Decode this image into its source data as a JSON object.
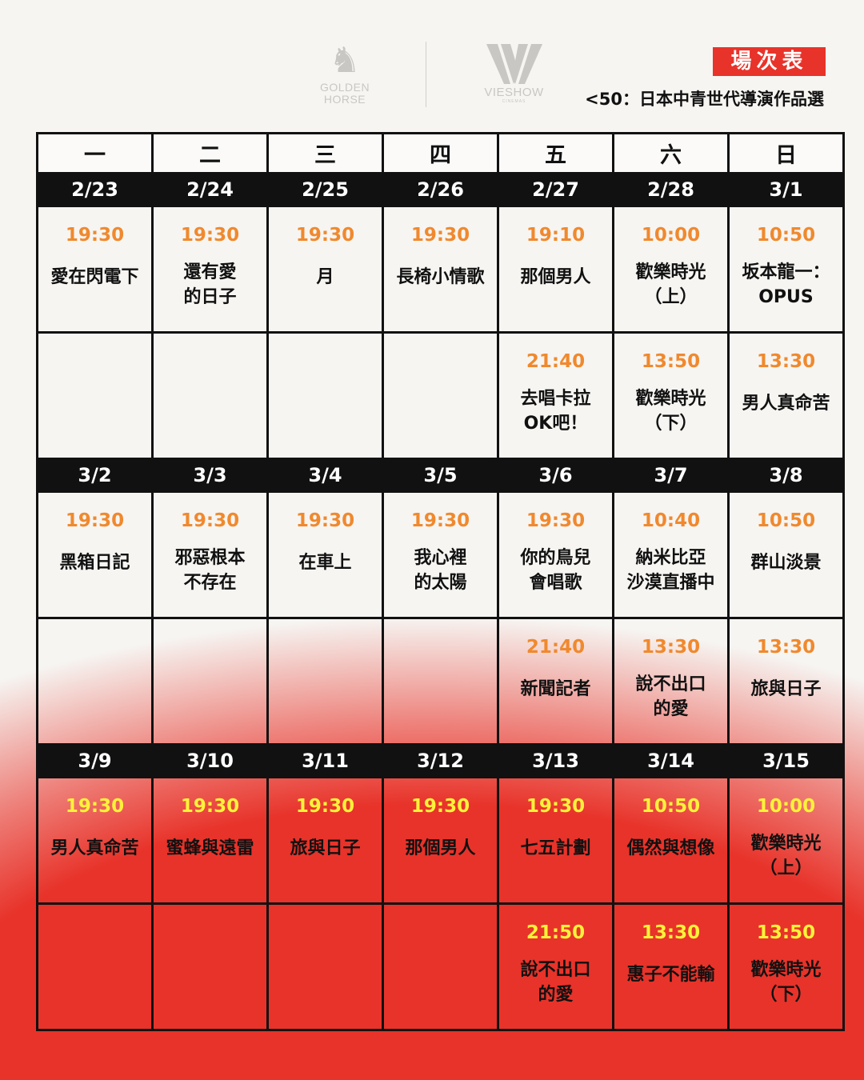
{
  "header": {
    "logo_left": "GOLDEN HORSE",
    "logo_right": "VIESHOW",
    "logo_right_sub": "CINEMAS",
    "badge": "場次表",
    "subtitle": "<50：日本中青世代導演作品選"
  },
  "colors": {
    "accent_red": "#e8332a",
    "time_orange": "#f0892e",
    "time_yellow": "#fff23a"
  },
  "weekdays": [
    "一",
    "二",
    "三",
    "四",
    "五",
    "六",
    "日"
  ],
  "weeks": [
    {
      "time_color": "#f0892e",
      "dates": [
        "2/23",
        "2/24",
        "2/25",
        "2/26",
        "2/27",
        "2/28",
        "3/1"
      ],
      "rows": [
        [
          {
            "time": "19:30",
            "title": "愛在閃電下"
          },
          {
            "time": "19:30",
            "title": "還有愛\n的日子"
          },
          {
            "time": "19:30",
            "title": "月"
          },
          {
            "time": "19:30",
            "title": "長椅小情歌"
          },
          {
            "time": "19:10",
            "title": "那個男人"
          },
          {
            "time": "10:00",
            "title": "歡樂時光\n（上）"
          },
          {
            "time": "10:50",
            "title": "坂本龍一：\nOPUS"
          }
        ],
        [
          null,
          null,
          null,
          null,
          {
            "time": "21:40",
            "title": "去唱卡拉\nOK吧！"
          },
          {
            "time": "13:50",
            "title": "歡樂時光\n（下）"
          },
          {
            "time": "13:30",
            "title": "男人真命苦"
          }
        ]
      ]
    },
    {
      "time_color": "#f0892e",
      "dates": [
        "3/2",
        "3/3",
        "3/4",
        "3/5",
        "3/6",
        "3/7",
        "3/8"
      ],
      "rows": [
        [
          {
            "time": "19:30",
            "title": "黑箱日記"
          },
          {
            "time": "19:30",
            "title": "邪惡根本\n不存在"
          },
          {
            "time": "19:30",
            "title": "在車上"
          },
          {
            "time": "19:30",
            "title": "我心裡\n的太陽"
          },
          {
            "time": "19:30",
            "title": "你的鳥兒\n會唱歌"
          },
          {
            "time": "10:40",
            "title": "納米比亞\n沙漠直播中"
          },
          {
            "time": "10:50",
            "title": "群山淡景"
          }
        ],
        [
          null,
          null,
          null,
          null,
          {
            "time": "21:40",
            "title": "新聞記者"
          },
          {
            "time": "13:30",
            "title": "說不出口\n的愛"
          },
          {
            "time": "13:30",
            "title": "旅與日子"
          }
        ]
      ]
    },
    {
      "time_color": "#fff23a",
      "dates": [
        "3/9",
        "3/10",
        "3/11",
        "3/12",
        "3/13",
        "3/14",
        "3/15"
      ],
      "rows": [
        [
          {
            "time": "19:30",
            "title": "男人真命苦"
          },
          {
            "time": "19:30",
            "title": "蜜蜂與遠雷"
          },
          {
            "time": "19:30",
            "title": "旅與日子"
          },
          {
            "time": "19:30",
            "title": "那個男人"
          },
          {
            "time": "19:30",
            "title": "七五計劃"
          },
          {
            "time": "10:50",
            "title": "偶然與想像"
          },
          {
            "time": "10:00",
            "title": "歡樂時光\n（上）"
          }
        ],
        [
          null,
          null,
          null,
          null,
          {
            "time": "21:50",
            "title": "說不出口\n的愛"
          },
          {
            "time": "13:30",
            "title": "惠子不能輸"
          },
          {
            "time": "13:50",
            "title": "歡樂時光\n（下）"
          }
        ]
      ]
    }
  ]
}
